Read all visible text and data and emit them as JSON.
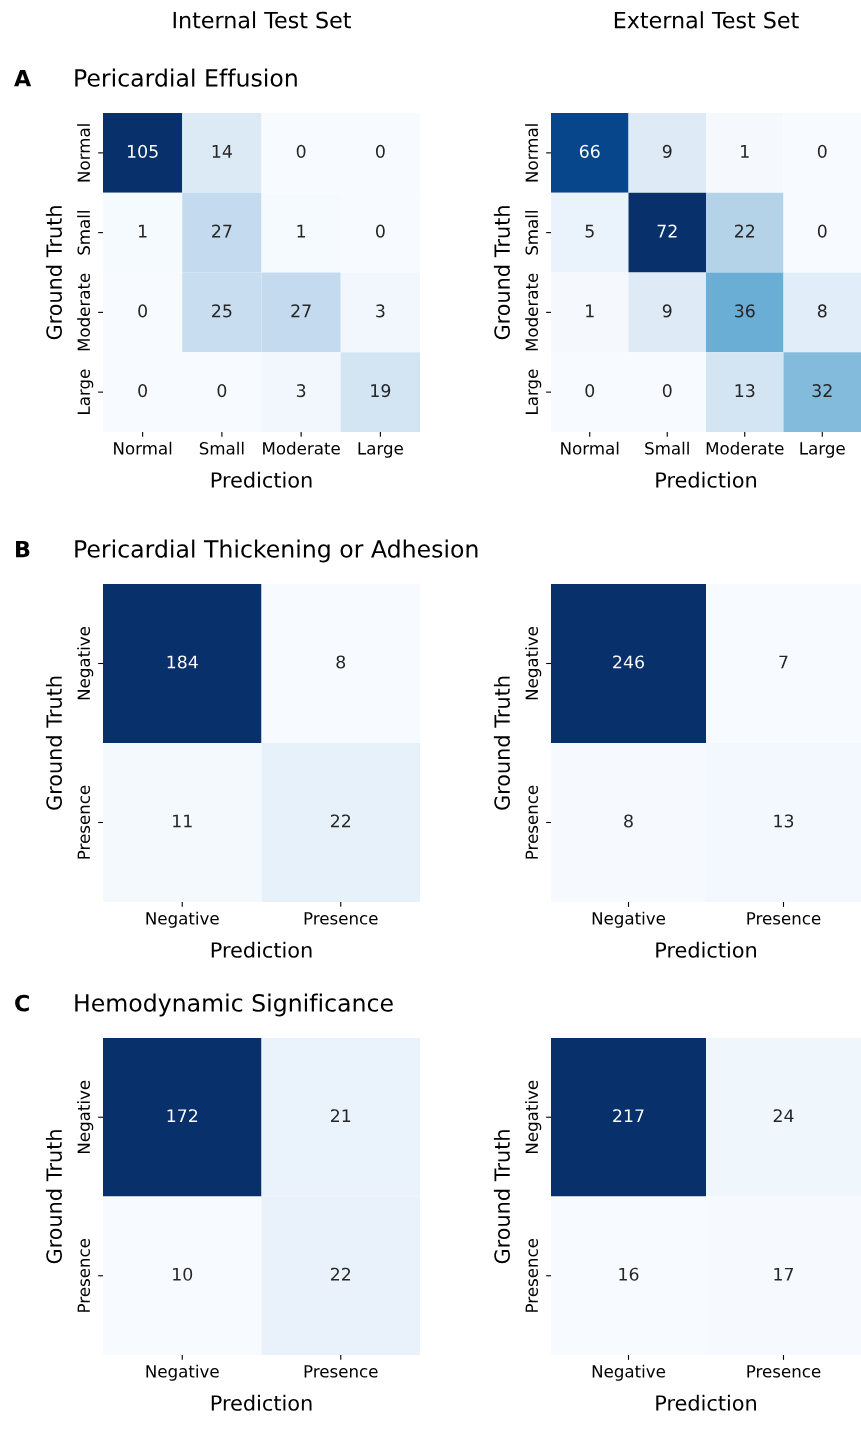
{
  "chart_data": [
    {
      "type": "heatmap",
      "subtitle": "Internal Test Set",
      "title": "Pericardial Effusion",
      "annotations": [
        "A"
      ],
      "xlabel": "Prediction",
      "ylabel": "Ground Truth",
      "categories": [
        "Normal",
        "Small",
        "Moderate",
        "Large"
      ],
      "y_categories": [
        "Normal",
        "Small",
        "Moderate",
        "Large"
      ],
      "cells": [
        [
          105,
          14,
          0,
          0
        ],
        [
          1,
          27,
          1,
          0
        ],
        [
          0,
          25,
          27,
          3
        ],
        [
          0,
          0,
          3,
          19
        ]
      ],
      "data_labels": true
    },
    {
      "type": "heatmap",
      "subtitle": "External Test Set",
      "xlabel": "Prediction",
      "ylabel": "Ground Truth",
      "categories": [
        "Normal",
        "Small",
        "Moderate",
        "Large"
      ],
      "y_categories": [
        "Normal",
        "Small",
        "Moderate",
        "Large"
      ],
      "cells": [
        [
          66,
          9,
          1,
          0
        ],
        [
          5,
          72,
          22,
          0
        ],
        [
          1,
          9,
          36,
          8
        ],
        [
          0,
          0,
          13,
          32
        ]
      ],
      "data_labels": true
    },
    {
      "type": "heatmap",
      "title": "Pericardial Thickening or Adhesion",
      "annotations": [
        "B"
      ],
      "xlabel": "Prediction",
      "ylabel": "Ground Truth",
      "categories": [
        "Negative",
        "Presence"
      ],
      "y_categories": [
        "Negative",
        "Presence"
      ],
      "cells": [
        [
          184,
          8
        ],
        [
          11,
          22
        ]
      ],
      "data_labels": true
    },
    {
      "type": "heatmap",
      "xlabel": "Prediction",
      "ylabel": "Ground Truth",
      "categories": [
        "Negative",
        "Presence"
      ],
      "y_categories": [
        "Negative",
        "Presence"
      ],
      "cells": [
        [
          246,
          7
        ],
        [
          8,
          13
        ]
      ],
      "data_labels": true
    },
    {
      "type": "heatmap",
      "title": "Hemodynamic Significance",
      "annotations": [
        "C"
      ],
      "xlabel": "Prediction",
      "ylabel": "Ground Truth",
      "categories": [
        "Negative",
        "Presence"
      ],
      "y_categories": [
        "Negative",
        "Presence"
      ],
      "cells": [
        [
          172,
          21
        ],
        [
          10,
          22
        ]
      ],
      "data_labels": true
    },
    {
      "type": "heatmap",
      "xlabel": "Prediction",
      "ylabel": "Ground Truth",
      "categories": [
        "Negative",
        "Presence"
      ],
      "y_categories": [
        "Negative",
        "Presence"
      ],
      "cells": [
        [
          217,
          24
        ],
        [
          16,
          17
        ]
      ],
      "data_labels": true
    }
  ]
}
